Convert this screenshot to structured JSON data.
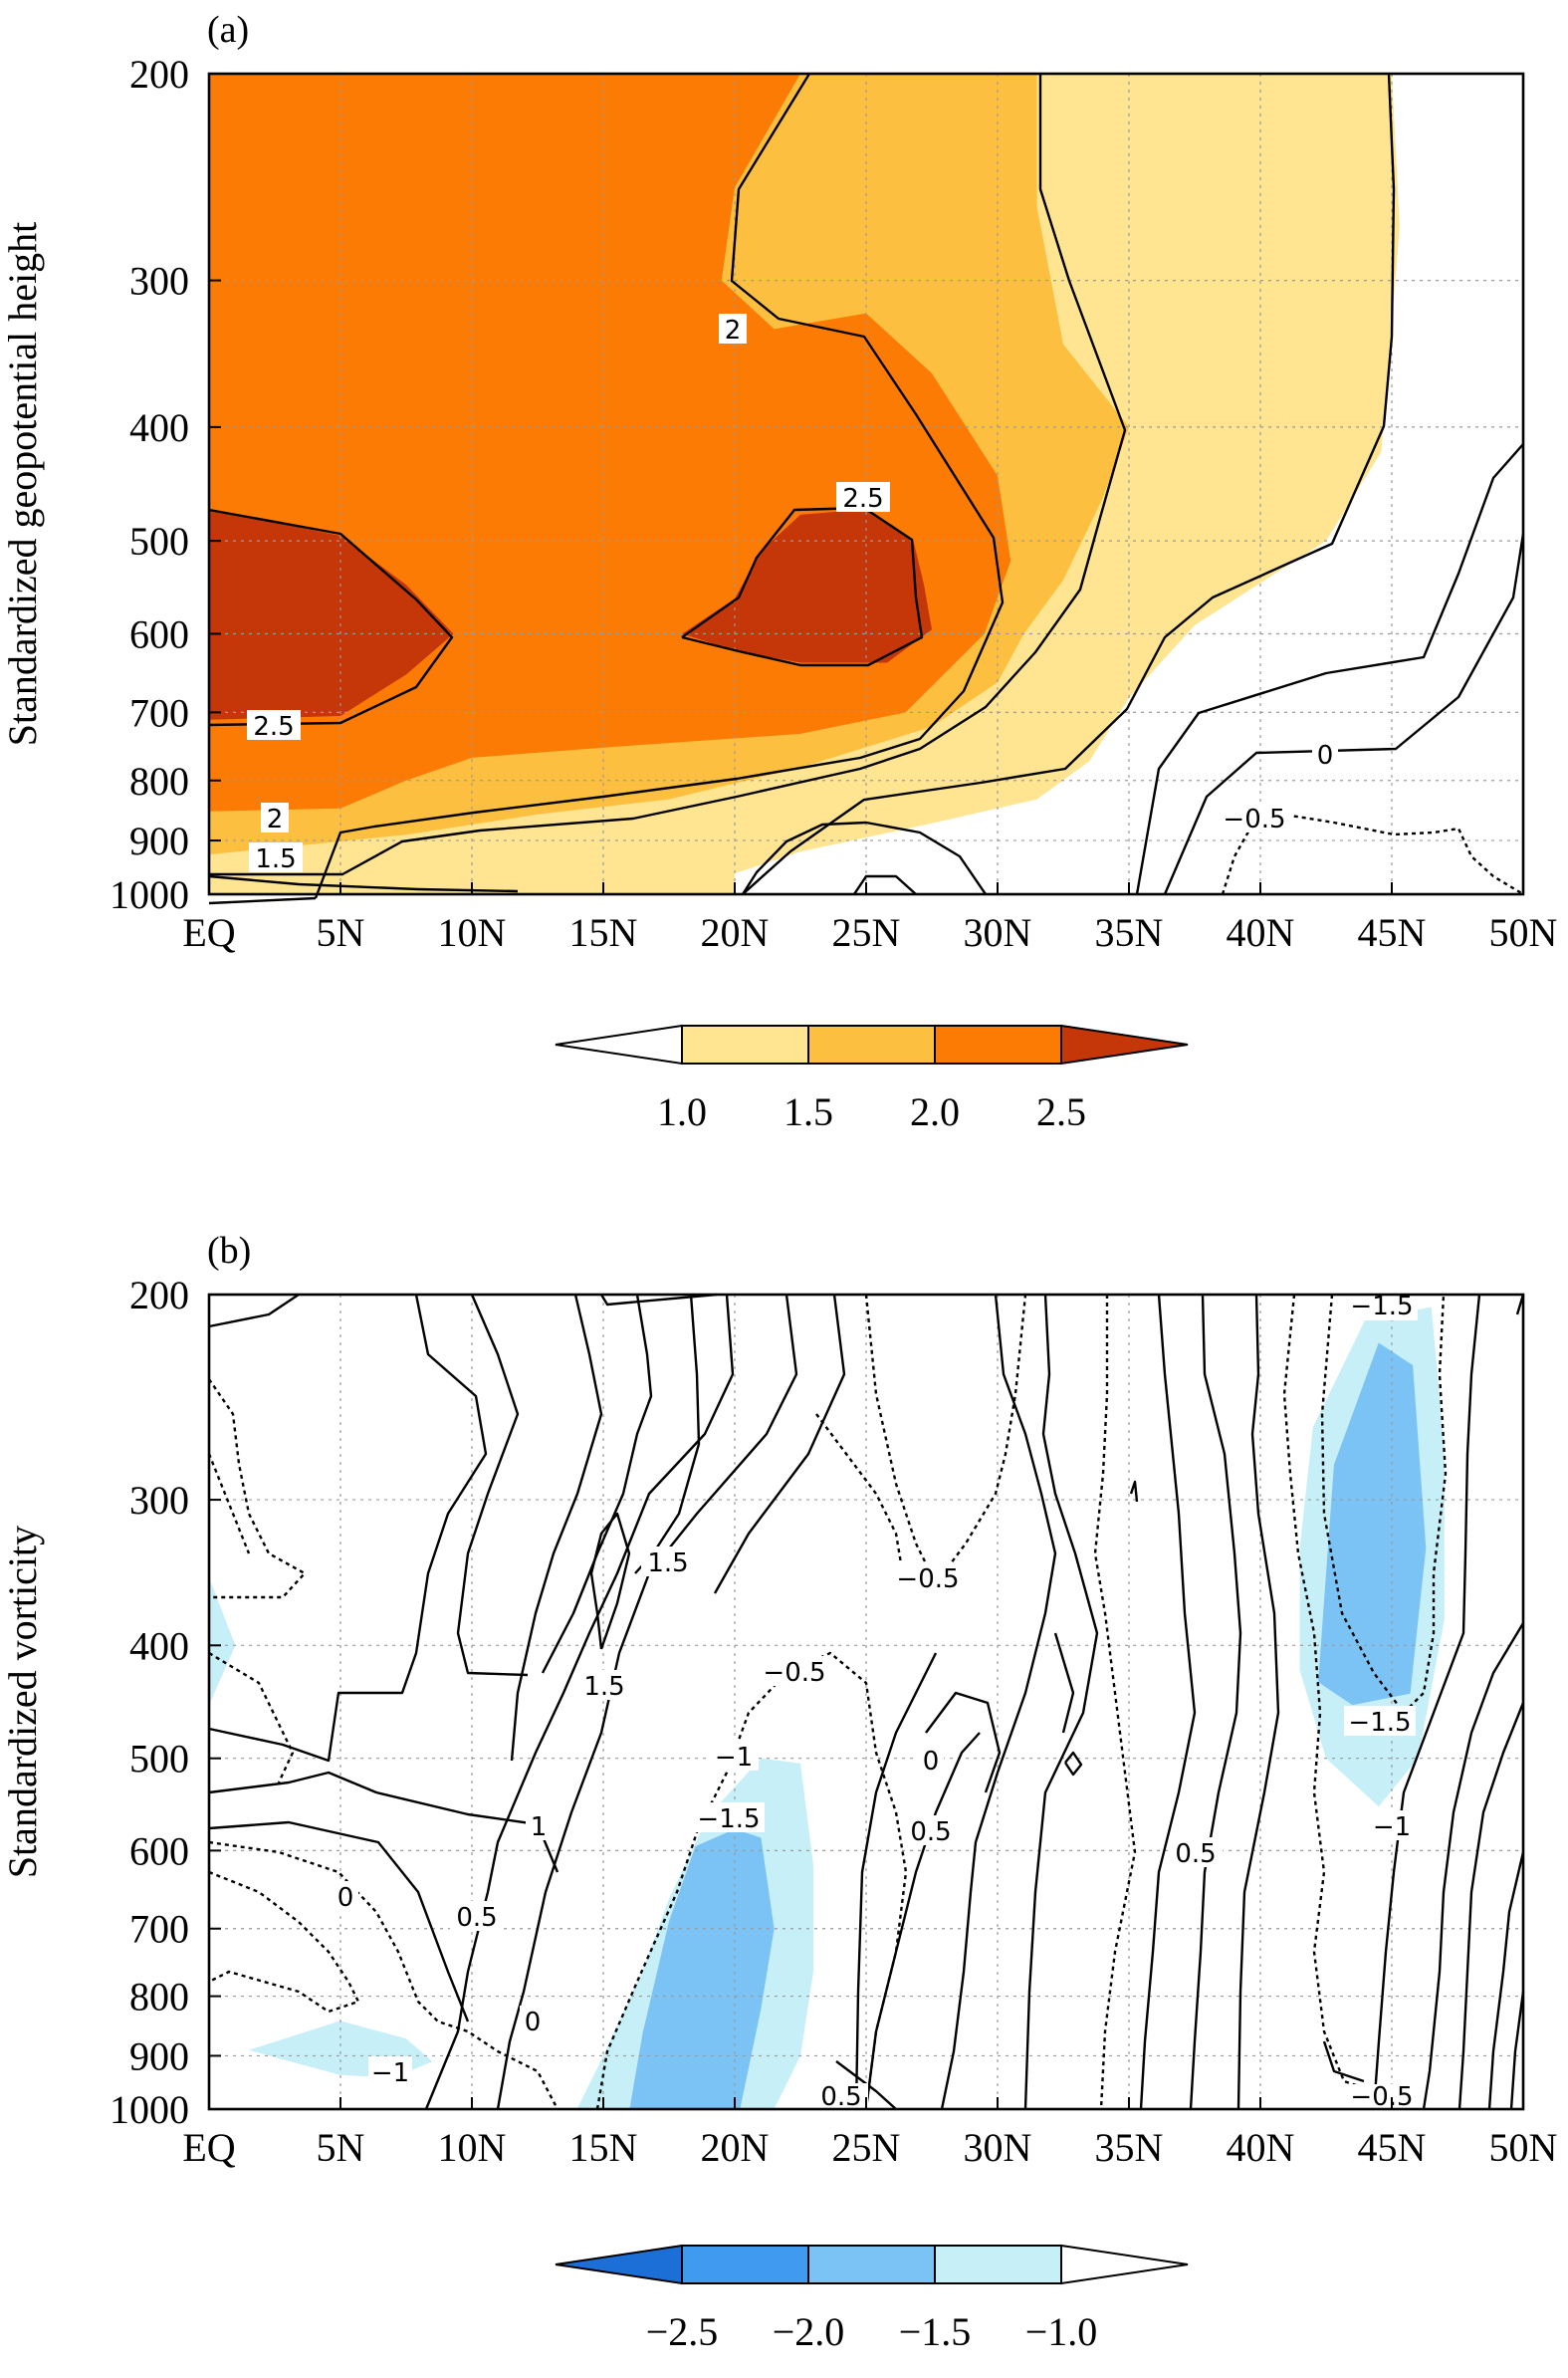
{
  "chart_data": [
    {
      "panel": "(a)",
      "type": "contour",
      "ylabel": "Standardized geopotential height",
      "x_ticks": [
        "EQ",
        "5N",
        "10N",
        "15N",
        "20N",
        "25N",
        "30N",
        "35N",
        "40N",
        "45N",
        "50N"
      ],
      "x_range": [
        0,
        50
      ],
      "y_ticks": [
        200,
        300,
        400,
        500,
        600,
        700,
        800,
        900,
        1000
      ],
      "y_range": [
        200,
        1000
      ],
      "y_scale": "log (pressure, hPa)",
      "grid": true,
      "colorbar": {
        "levels": [
          "1.0",
          "1.5",
          "2.0",
          "2.5"
        ],
        "colors": [
          "#ffffff",
          "#ffe491",
          "#fdbf40",
          "#fc7b05",
          "#c53608"
        ]
      },
      "contour_labels": [
        "2",
        "2.5",
        "2.5",
        "2",
        "1.5",
        "0",
        "−0.5"
      ],
      "shaded_regions": [
        {
          "min": 1.0,
          "color": "#ffe491",
          "polygon": [
            [
              0,
              1000
            ],
            [
              0,
              200
            ],
            [
              45,
              200
            ],
            [
              45.3,
              270
            ],
            [
              44.6,
              420
            ],
            [
              42.5,
              500
            ],
            [
              37.5,
              590
            ],
            [
              35,
              680
            ],
            [
              33.5,
              770
            ],
            [
              31.5,
              830
            ],
            [
              27.5,
              870
            ],
            [
              22.5,
              920
            ],
            [
              20,
              960
            ],
            [
              20,
              1000
            ]
          ]
        },
        {
          "min": 1.5,
          "color": "#fdbf40",
          "polygon": [
            [
              0,
              965
            ],
            [
              0,
              200
            ],
            [
              31.5,
              200
            ],
            [
              31.5,
              260
            ],
            [
              32.5,
              340
            ],
            [
              35,
              400
            ],
            [
              34,
              460
            ],
            [
              32.5,
              540
            ],
            [
              31,
              600
            ],
            [
              30,
              660
            ],
            [
              27.5,
              720
            ],
            [
              22.5,
              780
            ],
            [
              17.5,
              830
            ],
            [
              12.5,
              855
            ],
            [
              7.5,
              890
            ],
            [
              0,
              925
            ]
          ]
        },
        {
          "min": 2.0,
          "color": "#fc7b05",
          "polygon": [
            [
              0,
              850
            ],
            [
              0,
              200
            ],
            [
              22.5,
              200
            ],
            [
              20,
              250
            ],
            [
              19.5,
              300
            ],
            [
              21.5,
              330
            ],
            [
              25,
              320
            ],
            [
              27.5,
              360
            ],
            [
              30,
              440
            ],
            [
              30.5,
              520
            ],
            [
              29.5,
              600
            ],
            [
              26.5,
              700
            ],
            [
              22.5,
              730
            ],
            [
              15,
              750
            ],
            [
              10,
              765
            ],
            [
              7.5,
              800
            ],
            [
              5,
              845
            ]
          ]
        },
        {
          "min": 2.5,
          "color": "#c53608",
          "polygon": [
            [
              0,
              470
            ],
            [
              5,
              495
            ],
            [
              7.5,
              545
            ],
            [
              9.3,
              600
            ],
            [
              7.5,
              650
            ],
            [
              5,
              705
            ],
            [
              0,
              710
            ]
          ]
        },
        {
          "min": 2.5,
          "color": "#c53608",
          "polygon": [
            [
              18,
              600
            ],
            [
              20,
              560
            ],
            [
              21,
              510
            ],
            [
              22.5,
              475
            ],
            [
              25,
              470
            ],
            [
              26.8,
              500
            ],
            [
              27.2,
              545
            ],
            [
              27.5,
              595
            ],
            [
              25.8,
              635
            ],
            [
              22.5,
              635
            ],
            [
              20,
              620
            ]
          ]
        }
      ]
    },
    {
      "panel": "(b)",
      "type": "contour",
      "ylabel": "Standardized vorticity",
      "x_ticks": [
        "EQ",
        "5N",
        "10N",
        "15N",
        "20N",
        "25N",
        "30N",
        "35N",
        "40N",
        "45N",
        "50N"
      ],
      "x_range": [
        0,
        50
      ],
      "y_ticks": [
        200,
        300,
        400,
        500,
        600,
        700,
        800,
        900,
        1000
      ],
      "y_range": [
        200,
        1000
      ],
      "y_scale": "log (pressure, hPa)",
      "grid": true,
      "colorbar": {
        "levels": [
          "−2.5",
          "−2.0",
          "−1.5",
          "−1.0"
        ],
        "colors": [
          "#1d6fd8",
          "#3f9af0",
          "#7cc3f5",
          "#c6eff7",
          "#ffffff"
        ]
      },
      "contour_labels": [
        "1.5",
        "1.5",
        "−0.5",
        "−0.5",
        "−1",
        "−1.5",
        "0",
        "0.5",
        "0.5",
        "1",
        "0",
        "0.5",
        "0",
        "−1",
        "0.5",
        "−1.5",
        "−1.5",
        "−1",
        "−0.5"
      ],
      "shaded_regions": [
        {
          "max": -1.0,
          "color": "#c6eff7",
          "polygon": [
            [
              0,
              350
            ],
            [
              1,
              400
            ],
            [
              0,
              450
            ]
          ]
        },
        {
          "max": -1.0,
          "color": "#c6eff7",
          "polygon": [
            [
              1.5,
              890
            ],
            [
              5,
              840
            ],
            [
              7.5,
              870
            ],
            [
              8.5,
              910
            ],
            [
              7,
              940
            ],
            [
              5,
              935
            ]
          ]
        },
        {
          "max": -1.0,
          "color": "#c6eff7",
          "polygon": [
            [
              14,
              1000
            ],
            [
              15,
              900
            ],
            [
              16.5,
              760
            ],
            [
              17.5,
              660
            ],
            [
              19,
              560
            ],
            [
              21,
              500
            ],
            [
              22.5,
              505
            ],
            [
              23,
              620
            ],
            [
              23,
              760
            ],
            [
              22.5,
              900
            ],
            [
              21.5,
              1000
            ]
          ]
        },
        {
          "max": -1.0,
          "color": "#c6eff7",
          "polygon": [
            [
              41.5,
              330
            ],
            [
              42,
              260
            ],
            [
              44,
              210
            ],
            [
              46.5,
              205
            ],
            [
              47,
              270
            ],
            [
              47,
              380
            ],
            [
              46,
              500
            ],
            [
              44.5,
              550
            ],
            [
              42.5,
              500
            ],
            [
              41.5,
              420
            ]
          ]
        },
        {
          "max": -1.5,
          "color": "#7cc3f5",
          "polygon": [
            [
              16,
              1000
            ],
            [
              16.5,
              860
            ],
            [
              17.5,
              690
            ],
            [
              18.5,
              595
            ],
            [
              20,
              575
            ],
            [
              21,
              585
            ],
            [
              21.5,
              700
            ],
            [
              21,
              820
            ],
            [
              20.2,
              1000
            ]
          ]
        },
        {
          "max": -1.5,
          "color": "#7cc3f5",
          "polygon": [
            [
              42.2,
              430
            ],
            [
              42.8,
              280
            ],
            [
              44.5,
              220
            ],
            [
              45.8,
              230
            ],
            [
              46.3,
              330
            ],
            [
              45.7,
              440
            ],
            [
              43.5,
              450
            ]
          ]
        }
      ]
    }
  ]
}
